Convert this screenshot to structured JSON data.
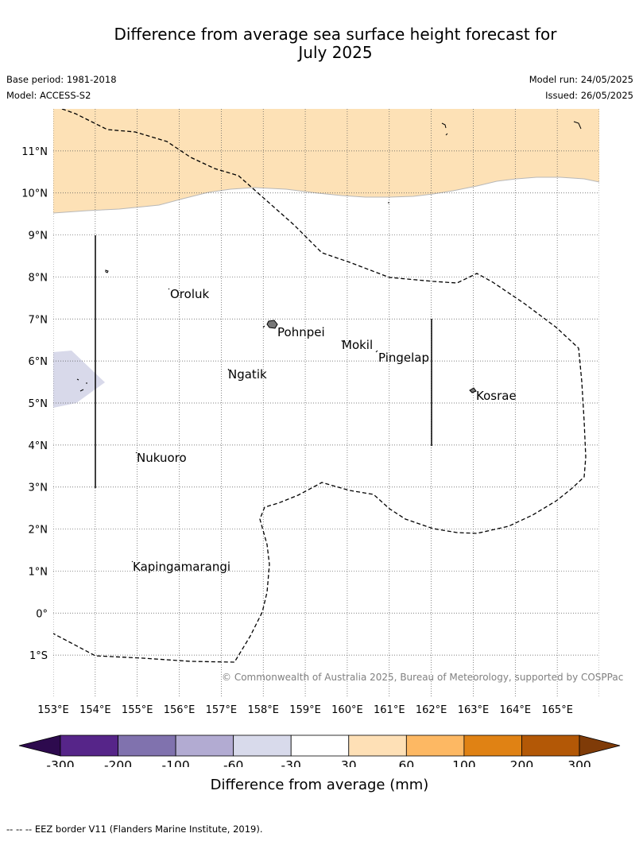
{
  "title_line1": "Difference from average sea surface height forecast for",
  "title_line2": "July 2025",
  "base_period": "Base period: 1981-2018",
  "model": "Model: ACCESS-S2",
  "model_run": "Model run: 24/05/2025",
  "issued": "Issued: 26/05/2025",
  "copyright": "© Commonwealth of Australia 2025, Bureau of Meteorology, supported by COSPPac",
  "map": {
    "lon_range": [
      153,
      166
    ],
    "lat_range": [
      -2,
      12
    ],
    "lon_ticks": [
      "153°E",
      "154°E",
      "155°E",
      "156°E",
      "157°E",
      "158°E",
      "159°E",
      "160°E",
      "161°E",
      "162°E",
      "163°E",
      "164°E",
      "165°E"
    ],
    "lat_ticks": [
      "11°N",
      "10°N",
      "9°N",
      "8°N",
      "7°N",
      "6°N",
      "5°N",
      "4°N",
      "3°N",
      "2°N",
      "1°N",
      "0°",
      "1°S"
    ],
    "places": [
      "Oroluk",
      "Pohnpei",
      "Mokil",
      "Pingelap",
      "Ngatik",
      "Kosrae",
      "Nukuoro",
      "Kapingamarangi"
    ],
    "grid": "dotted",
    "colors": {
      "anomaly_30_60": "#fde1b6",
      "anomaly_neg30_neg60": "#d8d9ea"
    }
  },
  "colorbar": {
    "title": "Difference from average (mm)",
    "tick_labels": [
      "-300",
      "-200",
      "-100",
      "-60",
      "-30",
      "30",
      "60",
      "100",
      "200",
      "300"
    ],
    "colors": [
      "#2d0a4e",
      "#562589",
      "#8072ae",
      "#b2abd2",
      "#d8daeb",
      "#ffffff",
      "#fee0b6",
      "#fdb863",
      "#e08214",
      "#b35806",
      "#7f3b08"
    ]
  },
  "footnote": "-- -- -- EEZ border V11 (Flanders Marine Institute, 2019)."
}
